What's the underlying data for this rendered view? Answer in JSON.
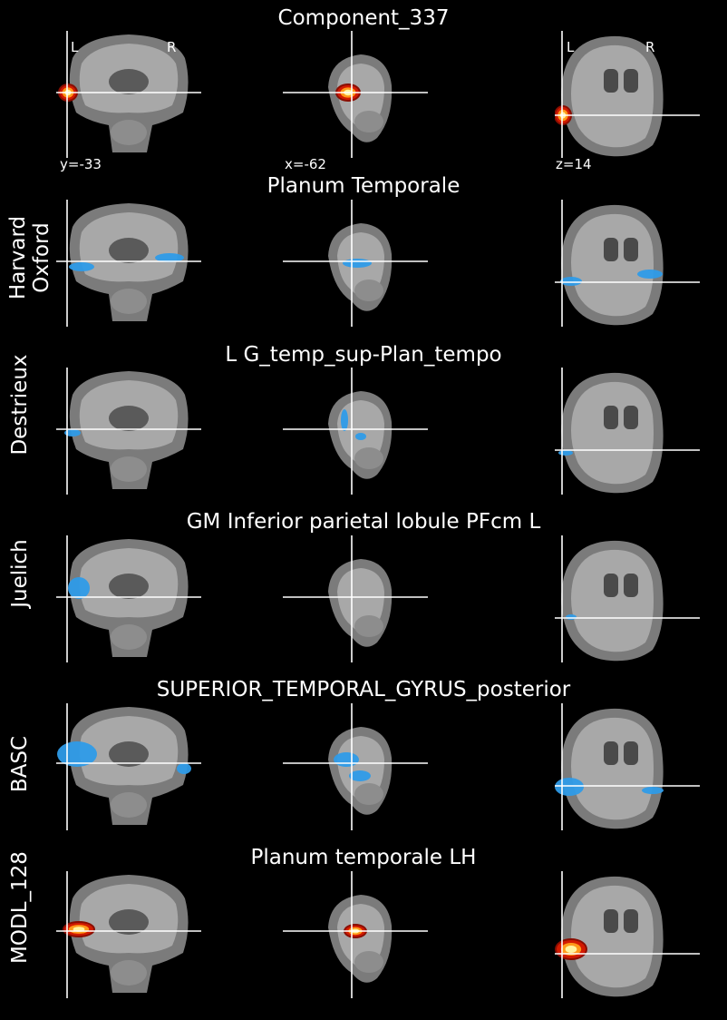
{
  "component_title": "Component_337",
  "coords": {
    "y": "y=-33",
    "x": "x=-62",
    "z": "z=14"
  },
  "orientation": {
    "left": "L",
    "right": "R"
  },
  "rows": [
    {
      "title": "Planum Temporale",
      "atlas_line1": "Harvard",
      "atlas_line2": "Oxford",
      "overlay": "blue"
    },
    {
      "title": "L G_temp_sup-Plan_tempo",
      "atlas_line1": "Destrieux",
      "atlas_line2": "",
      "overlay": "blue"
    },
    {
      "title": "GM Inferior parietal lobule PFcm L",
      "atlas_line1": "Juelich",
      "atlas_line2": "",
      "overlay": "blue"
    },
    {
      "title": "SUPERIOR_TEMPORAL_GYRUS_posterior",
      "atlas_line1": "BASC",
      "atlas_line2": "",
      "overlay": "blue"
    },
    {
      "title": "Planum temporale LH",
      "atlas_line1": "MODL_128",
      "atlas_line2": "",
      "overlay": "hot"
    }
  ],
  "colors": {
    "background": "#000000",
    "blue_overlay": "#2e9be8",
    "hot_overlay_outer": "#d21a00",
    "hot_overlay_inner": "#fff4a0",
    "crosshair": "#ffffff"
  }
}
